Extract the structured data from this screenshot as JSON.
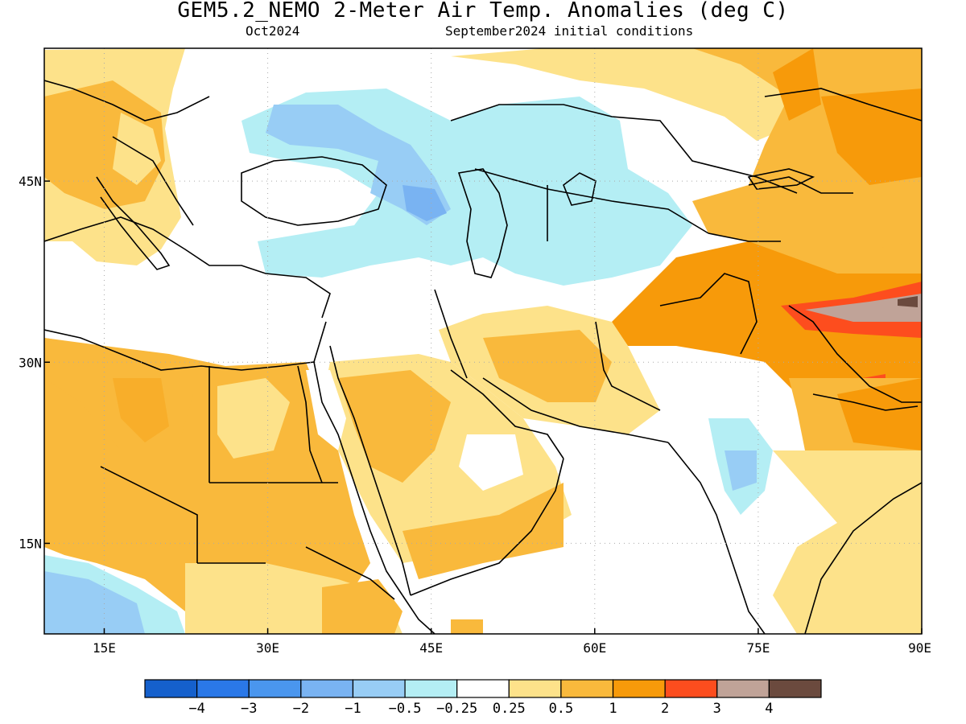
{
  "header": {
    "title": "GEM5.2_NEMO 2-Meter Air Temp. Anomalies (deg C)",
    "valid_month": "Oct2024",
    "initial_conditions": "September2024 initial conditions"
  },
  "map": {
    "lon_range": [
      9.5,
      90
    ],
    "lat_range": [
      7.5,
      56
    ],
    "lon_ticks": [
      {
        "value": 15,
        "label": "15E"
      },
      {
        "value": 30,
        "label": "30E"
      },
      {
        "value": 45,
        "label": "45E"
      },
      {
        "value": 60,
        "label": "60E"
      },
      {
        "value": 75,
        "label": "75E"
      },
      {
        "value": 90,
        "label": "90E"
      }
    ],
    "lat_ticks": [
      {
        "value": 45,
        "label": "45N"
      },
      {
        "value": 30,
        "label": "30N"
      },
      {
        "value": 15,
        "label": "15N"
      }
    ],
    "grid": true
  },
  "colorbar": {
    "colors": [
      "#1560cc",
      "#2a78e8",
      "#4a96ee",
      "#79b3f2",
      "#98cdf5",
      "#b4eef4",
      "#ffffff",
      "#fde28a",
      "#f9b93c",
      "#f79a0a",
      "#fd4d1e",
      "#c0a398",
      "#6b4a3e"
    ],
    "labels": [
      "−4",
      "−3",
      "−2",
      "−1",
      "−0.5",
      "−0.25",
      "0.25",
      "0.5",
      "1",
      "2",
      "3",
      "4"
    ]
  }
}
